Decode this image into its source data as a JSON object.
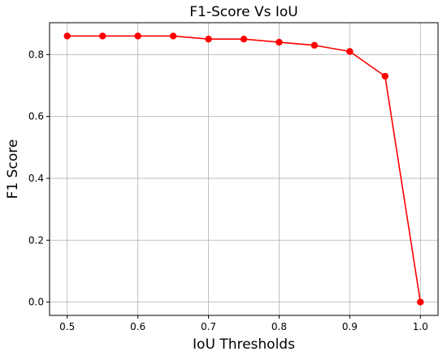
{
  "chart_data": {
    "type": "line",
    "title": "F1-Score Vs IoU",
    "xlabel": "IoU Thresholds",
    "ylabel": "F1 Score",
    "x": [
      0.5,
      0.55,
      0.6,
      0.65,
      0.7,
      0.75,
      0.8,
      0.85,
      0.9,
      0.95,
      1.0
    ],
    "series": [
      {
        "values": [
          0.86,
          0.86,
          0.86,
          0.86,
          0.85,
          0.85,
          0.84,
          0.83,
          0.81,
          0.73,
          0.0
        ],
        "color": "#ff0000",
        "marker": "circle"
      }
    ],
    "xlim": [
      0.475,
      1.025
    ],
    "ylim": [
      -0.043,
      0.903
    ],
    "xticks": [
      0.5,
      0.6,
      0.7,
      0.8,
      0.9,
      1.0
    ],
    "xtick_labels": [
      "0.5",
      "0.6",
      "0.7",
      "0.8",
      "0.9",
      "1.0"
    ],
    "yticks": [
      0.0,
      0.2,
      0.4,
      0.6,
      0.8
    ],
    "ytick_labels": [
      "0.0",
      "0.2",
      "0.4",
      "0.6",
      "0.8"
    ],
    "grid": true,
    "legend": false
  }
}
